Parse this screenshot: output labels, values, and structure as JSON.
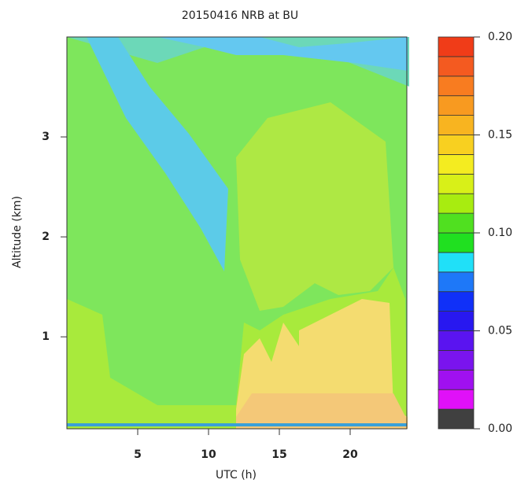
{
  "chart_data": {
    "type": "heatmap",
    "title": "20150416 NRB at BU",
    "xlabel": "UTC (h)",
    "ylabel": "Altitude (km)",
    "xlim": [
      0,
      24
    ],
    "xticks": [
      5,
      10,
      15,
      20
    ],
    "ylim": [
      0.08,
      4
    ],
    "yticks": [
      1,
      2,
      3
    ],
    "colorbar": {
      "clim": [
        0,
        0.2
      ],
      "ticks": [
        {
          "value": 0,
          "label": "0.00"
        },
        {
          "value": 0.05,
          "label": "0.05"
        },
        {
          "value": 0.1,
          "label": "0.10"
        },
        {
          "value": 0.15,
          "label": "0.15"
        },
        {
          "value": 0.2,
          "label": "0.20"
        }
      ],
      "colors": [
        "#404040",
        "#e010f8",
        "#a010f0",
        "#7a14ee",
        "#5a14f0",
        "#2818f0",
        "#1030f8",
        "#1e78f8",
        "#20e0f8",
        "#20e020",
        "#50e020",
        "#a8ec10",
        "#d8f018",
        "#f4ec20",
        "#f8d020",
        "#f8b420",
        "#f89a20",
        "#f87c20",
        "#f45a20",
        "#f03c18"
      ]
    }
  }
}
